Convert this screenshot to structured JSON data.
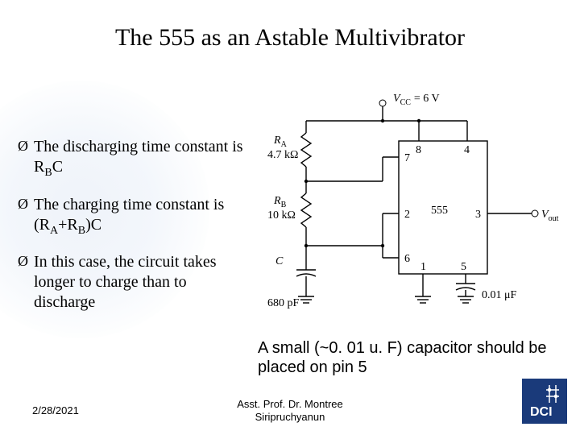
{
  "title": "The 555 as an Astable Multivibrator",
  "bullets": [
    {
      "prefix": "Ø",
      "html": "The discharging time constant is R<sub>B</sub>C"
    },
    {
      "prefix": "Ø",
      "html": "The charging time constant is (R<sub>A</sub>+R<sub>B</sub>)C"
    },
    {
      "prefix": "Ø",
      "html": "In this case, the circuit takes longer to charge than to discharge"
    }
  ],
  "caption": "A small (~0. 01 u. F) capacitor should be placed on pin 5",
  "footer": {
    "date": "2/28/2021",
    "author_line1": "Asst. Prof. Dr. Montree",
    "author_line2": "Siripruchyanun"
  },
  "logo": {
    "bg_color": "#1a3a7a",
    "fg_color": "#ffffff",
    "text": "DCI"
  },
  "circuit": {
    "vcc_label": "V",
    "vcc_sub": "CC",
    "vcc_value": "= 6 V",
    "ra_label": "R",
    "ra_sub": "A",
    "ra_value": "4.7 kΩ",
    "rb_label": "R",
    "rb_sub": "B",
    "rb_value": "10 kΩ",
    "c_label": "C",
    "c_value": "680 pF",
    "c2_value": "0.01 μF",
    "chip": "555",
    "vout": "V",
    "vout_sub": "out",
    "pin7": "7",
    "pin8": "8",
    "pin4": "4",
    "pin2": "2",
    "pin6": "6",
    "pin3": "3",
    "pin1": "1",
    "pin5": "5",
    "stroke": "#000000",
    "font_family": "Times New Roman"
  }
}
